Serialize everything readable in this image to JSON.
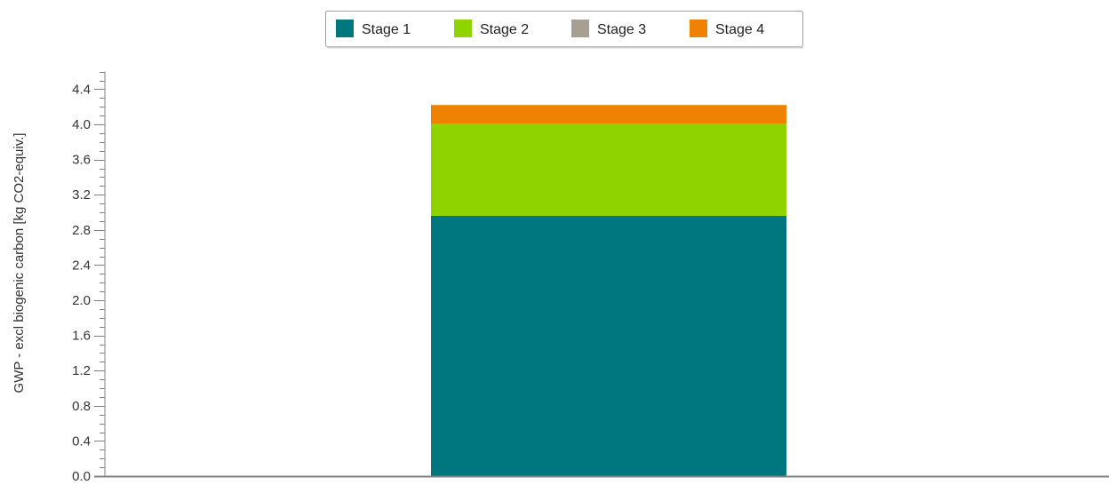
{
  "chart_data": {
    "type": "bar",
    "stacked": true,
    "categories": [
      ""
    ],
    "series": [
      {
        "name": "Stage 1",
        "values": [
          2.96
        ],
        "color": "#00767f"
      },
      {
        "name": "Stage 2",
        "values": [
          1.05
        ],
        "color": "#8fd400"
      },
      {
        "name": "Stage 3",
        "values": [
          0.0
        ],
        "color": "#a89f93"
      },
      {
        "name": "Stage 4",
        "values": [
          0.21
        ],
        "color": "#ef8200"
      }
    ],
    "title": "",
    "xlabel": "",
    "ylabel": "GWP - excl biogenic carbon [kg CO2-equiv.]",
    "ylim": [
      0,
      4.6
    ],
    "yticks": [
      0.0,
      0.4,
      0.8,
      1.2,
      1.6,
      2.0,
      2.4,
      2.8,
      3.2,
      3.6,
      4.0,
      4.4
    ],
    "ytick_labels": [
      "0.0",
      "0.4",
      "0.8",
      "1.2",
      "1.6",
      "2.0",
      "2.4",
      "2.8",
      "3.2",
      "3.6",
      "4.0",
      "4.4"
    ],
    "grid": false,
    "legend_position": "top-center",
    "axis_color": "#808080"
  }
}
